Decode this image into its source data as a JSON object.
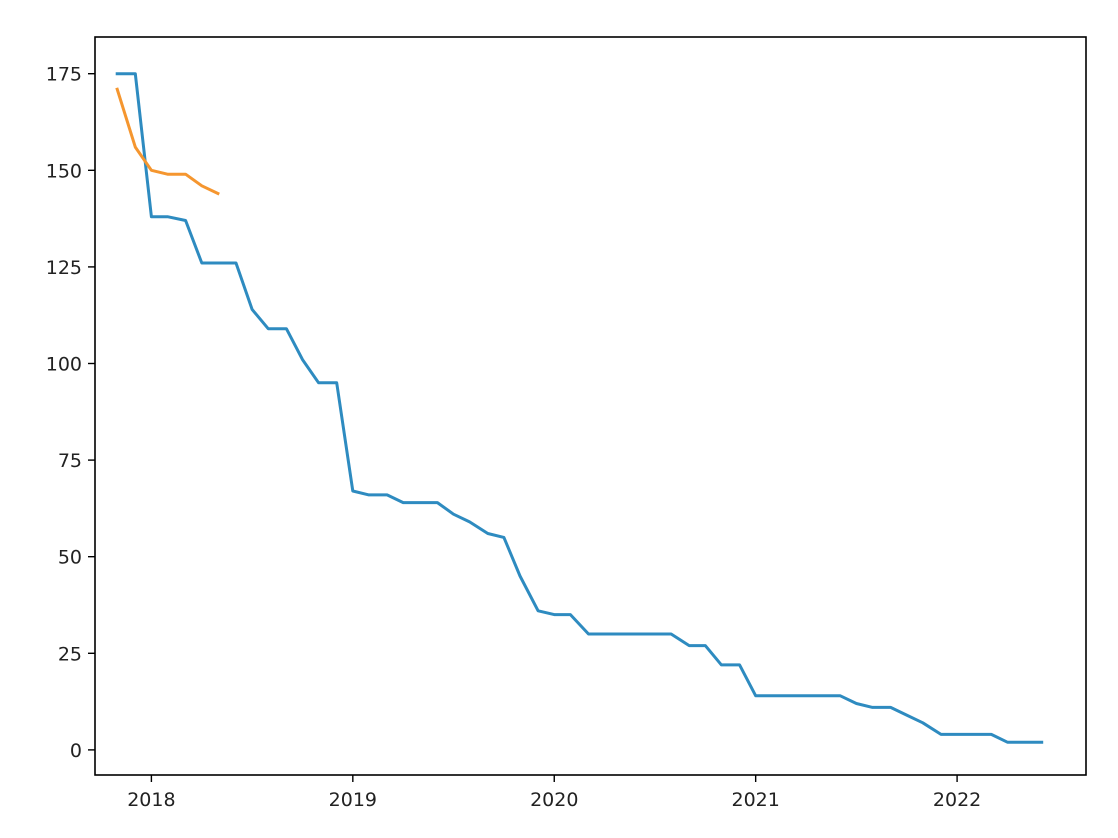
{
  "chart_data": {
    "type": "line",
    "title": "",
    "xlabel": "",
    "ylabel": "",
    "xlim": [
      2017.72,
      2022.64
    ],
    "ylim": [
      -6.5,
      184.5
    ],
    "grid": false,
    "x_ticks": [
      2018,
      2019,
      2020,
      2021,
      2022
    ],
    "x_tick_labels": [
      "2018",
      "2019",
      "2020",
      "2021",
      "2022"
    ],
    "y_ticks": [
      0,
      25,
      50,
      75,
      100,
      125,
      150,
      175
    ],
    "y_tick_labels": [
      "0",
      "25",
      "50",
      "75",
      "100",
      "125",
      "150",
      "175"
    ],
    "series": [
      {
        "color": "#2e8bc0",
        "x": [
          2017.83,
          2017.92,
          2018.0,
          2018.08,
          2018.17,
          2018.25,
          2018.33,
          2018.42,
          2018.5,
          2018.58,
          2018.67,
          2018.75,
          2018.83,
          2018.92,
          2019.0,
          2019.08,
          2019.17,
          2019.25,
          2019.33,
          2019.42,
          2019.5,
          2019.58,
          2019.67,
          2019.75,
          2019.83,
          2019.92,
          2020.0,
          2020.08,
          2020.17,
          2020.25,
          2020.33,
          2020.42,
          2020.5,
          2020.58,
          2020.67,
          2020.75,
          2020.83,
          2020.92,
          2021.0,
          2021.08,
          2021.17,
          2021.25,
          2021.33,
          2021.42,
          2021.5,
          2021.58,
          2021.67,
          2021.75,
          2021.83,
          2021.92,
          2022.0,
          2022.08,
          2022.17,
          2022.25,
          2022.33,
          2022.42
        ],
        "y": [
          175,
          175,
          138,
          138,
          137,
          126,
          126,
          126,
          114,
          109,
          109,
          101,
          95,
          95,
          67,
          66,
          66,
          64,
          64,
          64,
          61,
          59,
          56,
          55,
          45,
          36,
          35,
          35,
          30,
          30,
          30,
          30,
          30,
          30,
          27,
          27,
          22,
          22,
          14,
          14,
          14,
          14,
          14,
          14,
          12,
          11,
          11,
          9,
          7,
          4,
          4,
          4,
          4,
          2,
          2,
          2
        ]
      },
      {
        "color": "#f5962f",
        "x": [
          2017.83,
          2017.92,
          2018.0,
          2018.08,
          2018.17,
          2018.25,
          2018.33
        ],
        "y": [
          171,
          156,
          150,
          149,
          149,
          146,
          144
        ]
      }
    ]
  }
}
